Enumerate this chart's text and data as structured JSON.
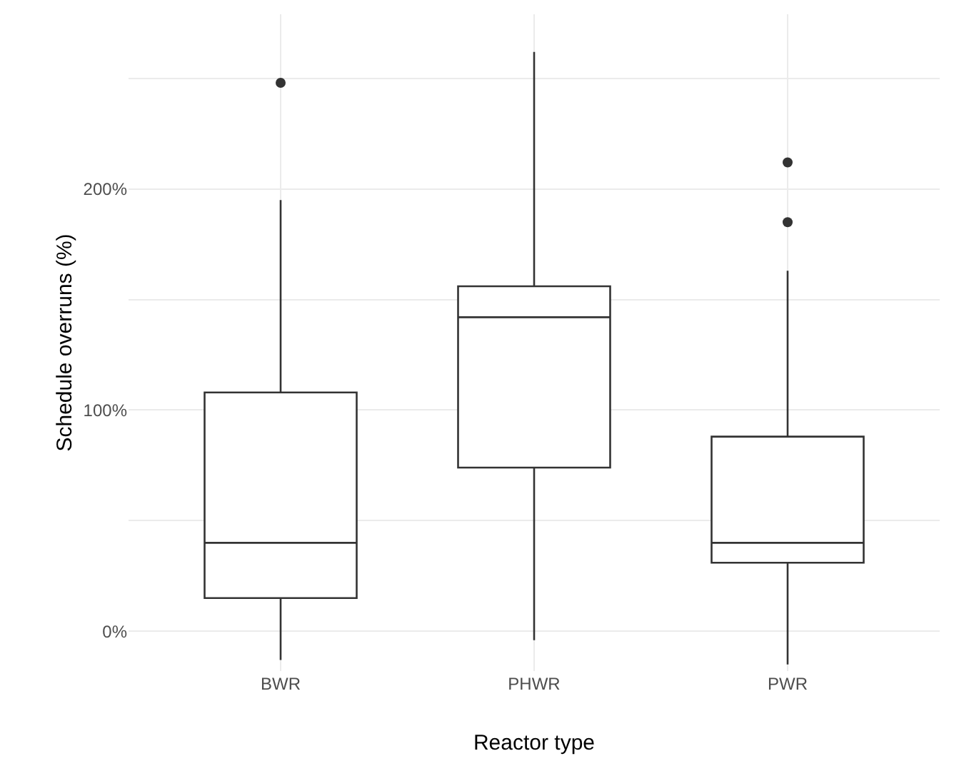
{
  "chart_data": {
    "type": "box",
    "xlabel": "Reactor type",
    "ylabel": "Schedule overruns (%)",
    "categories": [
      "BWR",
      "PHWR",
      "PWR"
    ],
    "boxes": [
      {
        "low": -13,
        "q1": 15,
        "median": 40,
        "q3": 108,
        "high": 195,
        "outliers": [
          248
        ]
      },
      {
        "low": -4,
        "q1": 74,
        "median": 142,
        "q3": 156,
        "high": 262
      },
      {
        "low": -15,
        "q1": 31,
        "median": 40,
        "q3": 88,
        "high": 163,
        "outliers": [
          185,
          212
        ]
      }
    ],
    "color": "#333333",
    "ylim": [
      -18,
      279
    ],
    "yticks": [
      {
        "value": 0,
        "label": "0%"
      },
      {
        "value": 50,
        "label": null
      },
      {
        "value": 100,
        "label": "100%"
      },
      {
        "value": 150,
        "label": null
      },
      {
        "value": 200,
        "label": "200%"
      },
      {
        "value": 250,
        "label": null
      }
    ],
    "grid": true,
    "marker": "circle"
  }
}
